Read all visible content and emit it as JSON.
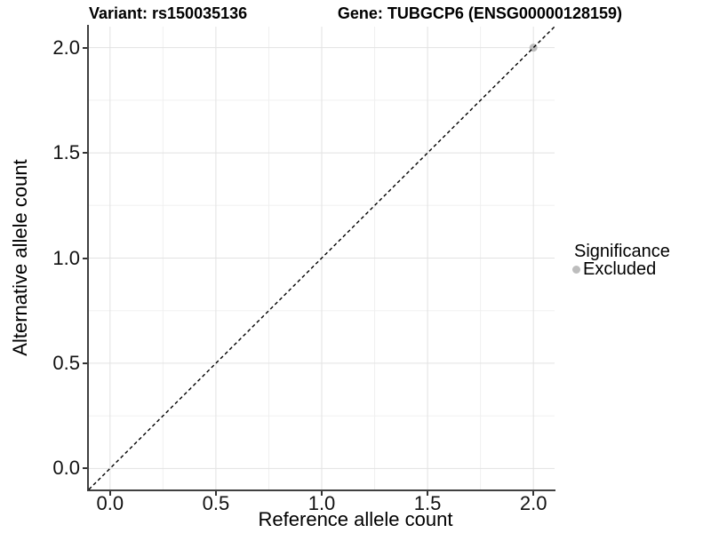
{
  "chart_data": {
    "type": "scatter",
    "title_left": "Variant: rs150035136",
    "title_right": "Gene: TUBGCP6 (ENSG00000128159)",
    "xlabel": "Reference allele count",
    "ylabel": "Alternative allele count",
    "xlim": [
      -0.1,
      2.1
    ],
    "ylim": [
      -0.1,
      2.1
    ],
    "x_ticks": {
      "values": [
        0,
        0.5,
        1.0,
        1.5,
        2.0
      ],
      "labels": [
        "0.0",
        "0.5",
        "1.0",
        "1.5",
        "2.0"
      ]
    },
    "y_ticks": {
      "values": [
        0,
        0.5,
        1.0,
        1.5,
        2.0
      ],
      "labels": [
        "0.0",
        "0.5",
        "1.0",
        "1.5",
        "2.0"
      ]
    },
    "minor_ticks": [
      0.25,
      0.75,
      1.25,
      1.75
    ],
    "grid": {
      "major": true,
      "minor": true
    },
    "legend": {
      "title": "Significance",
      "position": "right",
      "items": [
        {
          "label": "Excluded",
          "color": "#bdbdbd"
        }
      ]
    },
    "series": [
      {
        "name": "Excluded",
        "color": "#bdbdbd",
        "point_radius": 4.5,
        "points": [
          [
            2.0,
            2.0
          ]
        ]
      }
    ],
    "reference_line": {
      "type": "identity",
      "style": "dashed",
      "color": "#000000",
      "from": [
        -0.1,
        -0.1
      ],
      "to": [
        2.1,
        2.1
      ]
    }
  },
  "colors": {
    "background": "#ffffff",
    "grid_major": "#e2e2e2",
    "grid_minor": "#f0f0f0",
    "axis_line": "#404040",
    "tick_mark": "#333333",
    "text": "#000000"
  }
}
